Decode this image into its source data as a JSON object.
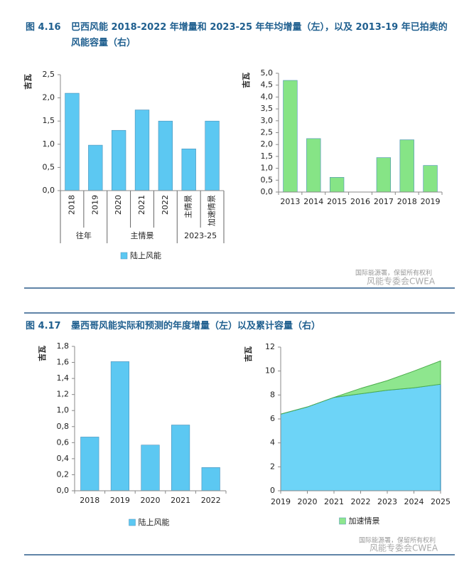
{
  "figures": [
    {
      "label": "图 4.16",
      "title": "巴西风能 2018-2022 年增量和 2023-25 年年均增量（左），以及 2013-19 年已拍卖的风能容量（右）"
    },
    {
      "label": "图 4.17",
      "title": "墨西哥风能实际和预测的年度增量（左）以及累计容量（右）"
    }
  ],
  "watermarks": [
    "国际能源署，保留所有权利",
    "风能专委会CWEA",
    "国际能源署，保留所有权利",
    "风能专委会CWEA"
  ],
  "chart_data": [
    {
      "type": "bar",
      "ylabel": "吉瓦",
      "vertical_labels": true,
      "categories": [
        "2018",
        "2019",
        "2020",
        "2021",
        "2022",
        "主情景",
        "加速情景"
      ],
      "category_groups": [
        "往年",
        "往年",
        "主情景",
        "主情景",
        "主情景",
        "2023-25",
        "2023-25"
      ],
      "series": [
        {
          "name": "陆上风能",
          "color": "#5cc8f2",
          "values": [
            2.1,
            0.98,
            1.3,
            1.74,
            1.5,
            0.9,
            1.5
          ]
        }
      ],
      "ylim": [
        0,
        2.5
      ],
      "yticks": [
        {
          "value": 0,
          "label": "0,0"
        },
        {
          "value": 0.5,
          "label": "0,5"
        },
        {
          "value": 1,
          "label": "1,0"
        },
        {
          "value": 1.5,
          "label": "1,5"
        },
        {
          "value": 2,
          "label": "2,0"
        },
        {
          "value": 2.5,
          "label": "2,5"
        }
      ]
    },
    {
      "type": "bar",
      "ylabel": "吉瓦",
      "categories": [
        "2013",
        "2014",
        "2015",
        "2016",
        "2017",
        "2018",
        "2019"
      ],
      "series": [
        {
          "color": "#86e486",
          "values": [
            4.7,
            2.25,
            0.62,
            0,
            1.45,
            2.2,
            1.12
          ]
        }
      ],
      "ylim": [
        0,
        5
      ],
      "yticks": [
        {
          "value": 0,
          "label": "0,0"
        },
        {
          "value": 0.5,
          "label": "0,5"
        },
        {
          "value": 1,
          "label": "1,0"
        },
        {
          "value": 1.5,
          "label": "1,5"
        },
        {
          "value": 2,
          "label": "2,0"
        },
        {
          "value": 2.5,
          "label": "2,5"
        },
        {
          "value": 3,
          "label": "3,0"
        },
        {
          "value": 3.5,
          "label": "3,5"
        },
        {
          "value": 4,
          "label": "4,0"
        },
        {
          "value": 4.5,
          "label": "4,5"
        },
        {
          "value": 5,
          "label": "5,0"
        }
      ]
    },
    {
      "type": "bar",
      "ylabel": "吉瓦",
      "categories": [
        "2018",
        "2019",
        "2020",
        "2021",
        "2022"
      ],
      "series": [
        {
          "name": "陆上风能",
          "color": "#5cc8f2",
          "values": [
            0.67,
            1.61,
            0.57,
            0.82,
            0.29
          ]
        }
      ],
      "ylim": [
        0,
        1.8
      ],
      "yticks": [
        {
          "value": 0,
          "label": "0,0"
        },
        {
          "value": 0.2,
          "label": "0,2"
        },
        {
          "value": 0.4,
          "label": "0,4"
        },
        {
          "value": 0.6,
          "label": "0,6"
        },
        {
          "value": 0.8,
          "label": "0,8"
        },
        {
          "value": 1,
          "label": "1,0"
        },
        {
          "value": 1.2,
          "label": "1,2"
        },
        {
          "value": 1.4,
          "label": "1,4"
        },
        {
          "value": 1.6,
          "label": "1,6"
        },
        {
          "value": 1.8,
          "label": "1,8"
        }
      ]
    },
    {
      "type": "area",
      "ylabel": "吉瓦",
      "categories": [
        "2019",
        "2020",
        "2021",
        "2022",
        "2023",
        "2024",
        "2025"
      ],
      "series": [
        {
          "color": "#6dd4f7",
          "values": [
            6.4,
            7.0,
            7.8,
            8.1,
            8.4,
            8.6,
            8.9
          ]
        },
        {
          "name": "加速情景",
          "color": "#8ee68e",
          "values": [
            0,
            0,
            0,
            0.45,
            0.8,
            1.4,
            1.95
          ]
        }
      ],
      "ylim": [
        0,
        12
      ],
      "yticks": [
        0,
        2,
        4,
        6,
        8,
        10,
        12
      ]
    }
  ]
}
